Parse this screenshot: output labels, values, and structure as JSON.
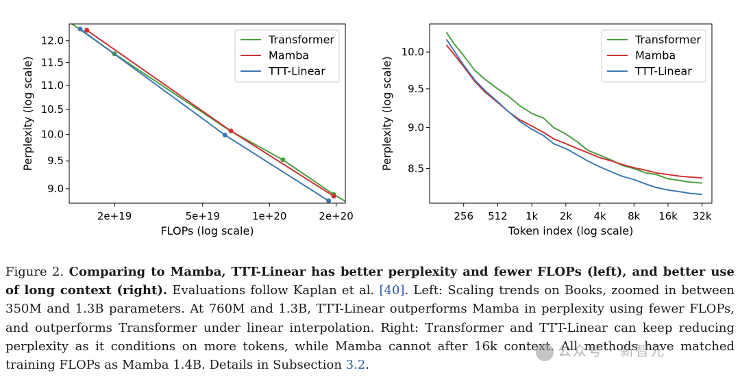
{
  "colors": {
    "transformer": "#4a9e3f",
    "mamba": "#cc3333",
    "ttt_linear": "#3f78b0"
  },
  "chart_data": [
    {
      "type": "line",
      "xlabel": "FLOPs (log scale)",
      "ylabel": "Perplexity (log scale)",
      "xscale": "log",
      "yscale": "log",
      "xlim": [
        1.25e+19,
        2.2e+20
      ],
      "ylim": [
        8.75,
        12.4
      ],
      "xticks": [
        2e+19,
        5e+19,
        1e+20,
        2e+20
      ],
      "xtick_labels": [
        "2e+19",
        "5e+19",
        "1e+20",
        "2e+20"
      ],
      "yticks": [
        9.0,
        9.5,
        10.0,
        10.5,
        11.0,
        11.5,
        12.0
      ],
      "ytick_labels": [
        "9.0",
        "9.5",
        "10.0",
        "10.5",
        "11.0",
        "11.5",
        "12.0"
      ],
      "legend_position": "top-right",
      "legend": [
        "Transformer",
        "Mamba",
        "TTT-Linear"
      ],
      "series": [
        {
          "name": "Transformer",
          "color_key": "transformer",
          "x": [
            1.25e+19,
            2e+19,
            6.5e+19,
            1.15e+20,
            1.95e+20,
            2.2e+20
          ],
          "y": [
            12.45,
            11.7,
            10.1,
            9.52,
            8.9,
            8.78
          ],
          "markers": [
            [
              2e+19,
              11.7
            ],
            [
              1.15e+20,
              9.52
            ],
            [
              1.95e+20,
              8.9
            ]
          ]
        },
        {
          "name": "Mamba",
          "color_key": "mamba",
          "x": [
            1.5e+19,
            6.7e+19,
            1.95e+20
          ],
          "y": [
            12.25,
            10.07,
            8.87
          ],
          "markers": [
            [
              1.5e+19,
              12.25
            ],
            [
              6.7e+19,
              10.07
            ],
            [
              1.95e+20,
              8.87
            ]
          ]
        },
        {
          "name": "TTT-Linear",
          "color_key": "ttt_linear",
          "x": [
            1.4e+19,
            6.3e+19,
            1.85e+20
          ],
          "y": [
            12.28,
            9.99,
            8.79
          ],
          "markers": [
            [
              1.4e+19,
              12.28
            ],
            [
              6.3e+19,
              9.99
            ],
            [
              1.85e+20,
              8.79
            ]
          ]
        }
      ]
    },
    {
      "type": "line",
      "xlabel": "Token index (log scale)",
      "ylabel": "Perplexity (log scale)",
      "xscale": "log",
      "yscale": "log",
      "xlim": [
        128,
        40000
      ],
      "ylim": [
        8.1,
        10.4
      ],
      "xticks": [
        256,
        512,
        1024,
        2048,
        4096,
        8192,
        16384,
        32768
      ],
      "xtick_labels": [
        "256",
        "512",
        "1k",
        "2k",
        "4k",
        "8k",
        "16k",
        "32k"
      ],
      "yticks": [
        8.5,
        9.0,
        9.5,
        10.0
      ],
      "ytick_labels": [
        "8.5",
        "9.0",
        "9.5",
        "10.0"
      ],
      "legend_position": "top-right",
      "legend": [
        "Transformer",
        "Mamba",
        "TTT-Linear"
      ],
      "series": [
        {
          "name": "Transformer",
          "color_key": "transformer",
          "x": [
            180,
            210,
            256,
            320,
            400,
            512,
            640,
            800,
            1024,
            1300,
            1600,
            2048,
            2600,
            3200,
            4096,
            5200,
            6400,
            8192,
            10400,
            12800,
            16384,
            20800,
            26000,
            32768
          ],
          "y": [
            10.28,
            10.12,
            9.95,
            9.75,
            9.62,
            9.5,
            9.4,
            9.28,
            9.18,
            9.12,
            9.0,
            8.92,
            8.82,
            8.72,
            8.66,
            8.6,
            8.54,
            8.5,
            8.45,
            8.43,
            8.38,
            8.36,
            8.34,
            8.33
          ]
        },
        {
          "name": "Mamba",
          "color_key": "mamba",
          "x": [
            180,
            210,
            256,
            320,
            400,
            512,
            640,
            800,
            1024,
            1300,
            1600,
            2048,
            2600,
            3200,
            4096,
            5200,
            6400,
            8192,
            10400,
            12800,
            16384,
            20800,
            26000,
            32768
          ],
          "y": [
            10.1,
            9.97,
            9.8,
            9.6,
            9.45,
            9.32,
            9.2,
            9.1,
            9.02,
            8.94,
            8.86,
            8.8,
            8.74,
            8.69,
            8.63,
            8.59,
            8.55,
            8.51,
            8.48,
            8.45,
            8.43,
            8.41,
            8.4,
            8.39
          ]
        },
        {
          "name": "TTT-Linear",
          "color_key": "ttt_linear",
          "x": [
            180,
            210,
            256,
            320,
            400,
            512,
            640,
            800,
            1024,
            1300,
            1600,
            2048,
            2600,
            3200,
            4096,
            5200,
            6400,
            8192,
            10400,
            12800,
            16384,
            20800,
            26000,
            32768
          ],
          "y": [
            10.18,
            10.02,
            9.82,
            9.62,
            9.47,
            9.33,
            9.2,
            9.08,
            8.98,
            8.9,
            8.8,
            8.74,
            8.66,
            8.59,
            8.52,
            8.46,
            8.41,
            8.37,
            8.32,
            8.28,
            8.25,
            8.23,
            8.21,
            8.2
          ]
        }
      ]
    }
  ],
  "caption": {
    "prefix": "Figure 2. ",
    "bold": "Comparing to Mamba, TTT-Linear has better perplexity and fewer FLOPs (left), and better use of long context (right).",
    "part1": " Evaluations follow Kaplan et al. ",
    "cite1": "[40]",
    "part2": ". Left: Scaling trends on Books, zoomed in between 350M and 1.3B parameters. At 760M and 1.3B, TTT-Linear outperforms Mamba in perplexity using fewer FLOPs, and outperforms Transformer under linear interpolation. Right: Transformer and TTT-Linear can keep reducing perplexity as it conditions on more tokens, while Mamba cannot after 16k context. All methods have matched training FLOPs as Mamba 1.4B. Details in Subsection ",
    "cite2": "3.2",
    "part3": "."
  },
  "watermark": {
    "text": "公众号 · 新智元"
  }
}
